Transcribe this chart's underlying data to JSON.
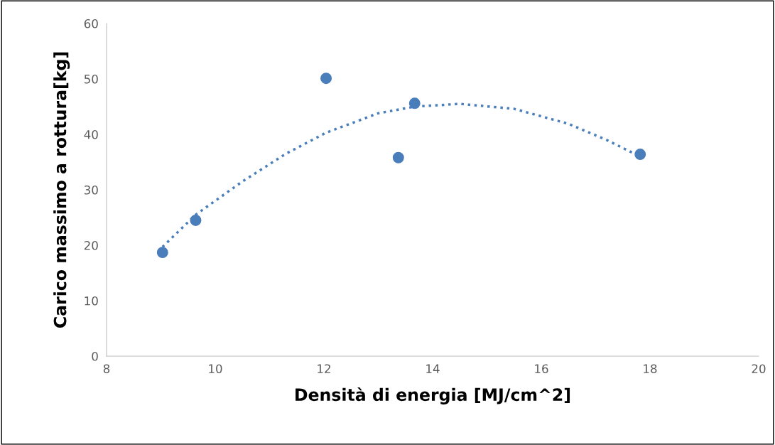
{
  "chart_data": {
    "type": "scatter",
    "xlabel": "Densità di energia [MJ/cm^2]",
    "ylabel": "Carico massimo a rottura[kg]",
    "xlim": [
      8,
      20
    ],
    "xticks": [
      8,
      10,
      12,
      14,
      16,
      18,
      20
    ],
    "ylim": [
      0,
      60
    ],
    "yticks": [
      0,
      10,
      20,
      30,
      40,
      50,
      60
    ],
    "grid": false,
    "legend": false,
    "series": [
      {
        "marker": "circle",
        "color": "#4a7ebb",
        "x": [
          9.03,
          9.64,
          12.04,
          13.37,
          13.67,
          17.82
        ],
        "values": [
          18.7,
          24.5,
          50.1,
          35.8,
          45.6,
          36.4
        ]
      },
      {
        "type": "line",
        "color": "#4a7ebb",
        "line_style": "dotted",
        "marker": "none",
        "x": [
          9.03,
          9.64,
          10.5,
          11.3,
          12.04,
          13.0,
          13.67,
          14.5,
          15.5,
          16.5,
          17.2,
          17.82
        ],
        "values": [
          19.7,
          25.5,
          31.5,
          36.5,
          40.3,
          43.8,
          45.0,
          45.5,
          44.6,
          41.9,
          39.0,
          36.0
        ]
      }
    ]
  }
}
